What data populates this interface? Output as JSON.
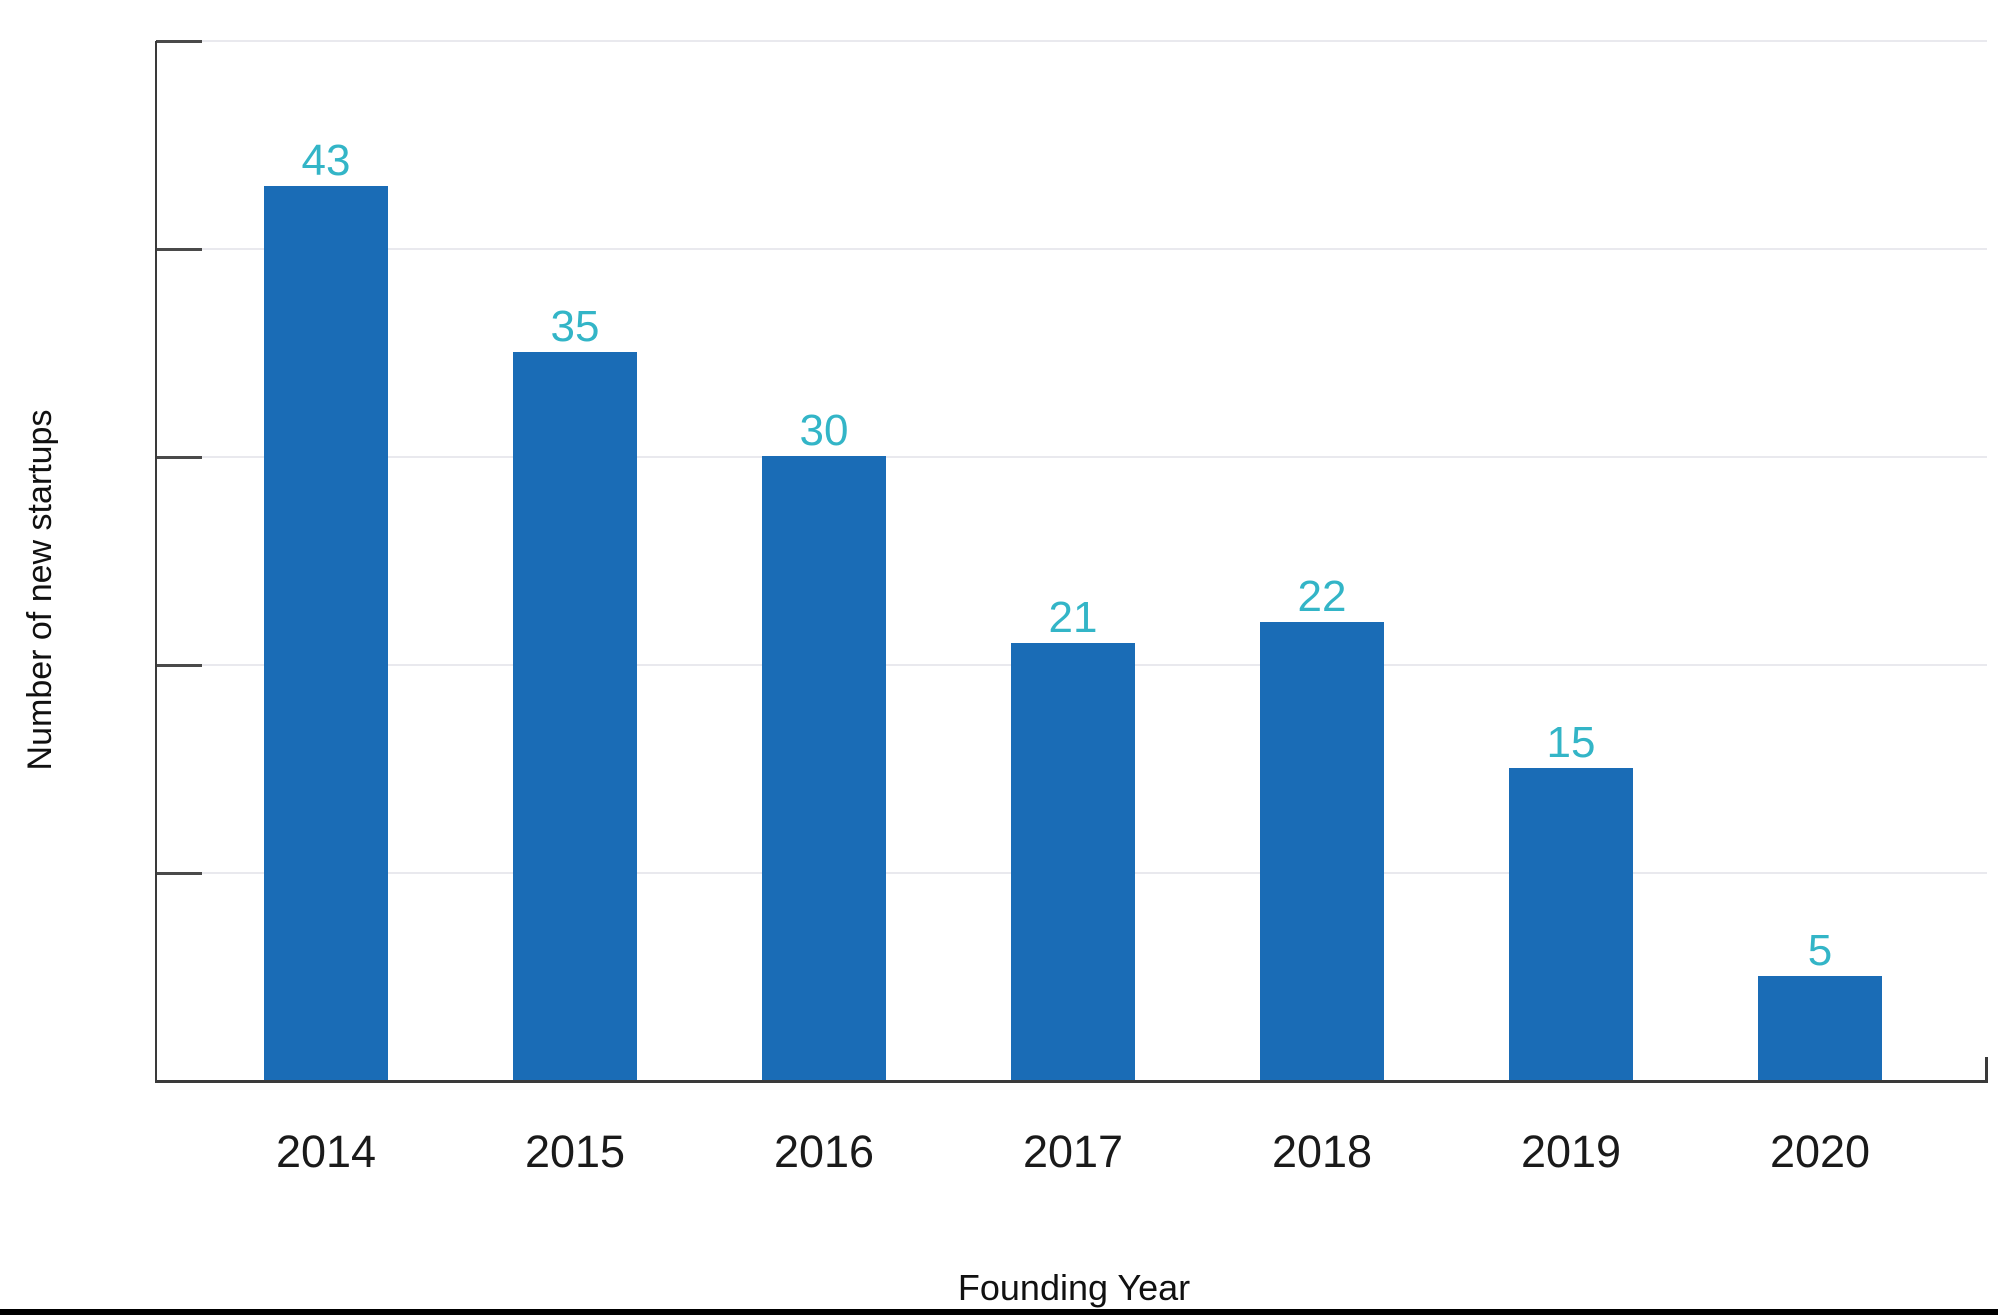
{
  "chart_data": {
    "type": "bar",
    "title": "",
    "categories": [
      "2014",
      "2015",
      "2016",
      "2017",
      "2018",
      "2019",
      "2020"
    ],
    "values": [
      43,
      35,
      30,
      21,
      22,
      15,
      5
    ],
    "value_labels": [
      "43",
      "35",
      "30",
      "21",
      "22",
      "15",
      "5"
    ],
    "xlabel": "Founding Year",
    "ylabel": "Number of new startups",
    "ylim": [
      0,
      50
    ],
    "ytick_interval": 10,
    "ytick_labels_visible": false,
    "grid": "horizontal",
    "legend_position": "none",
    "colors": {
      "bar": "#1a6cb6",
      "value_label": "#33b5c7",
      "axis": "#3a3a3a",
      "tick": "#4a4a4a",
      "gridline": "#e9e9ee",
      "category_label": "#1a1a1a",
      "bottom_border": "#000000"
    }
  }
}
